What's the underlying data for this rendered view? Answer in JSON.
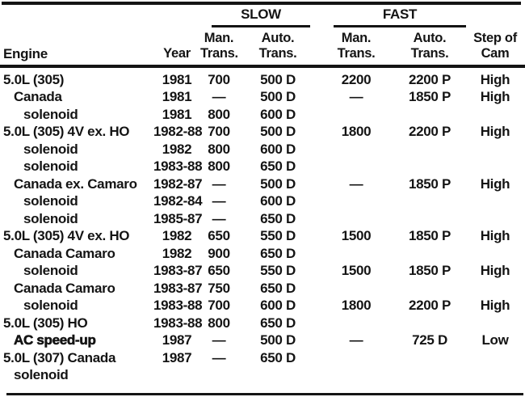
{
  "colors": {
    "text": "#141414",
    "background": "#ffffff",
    "rule": "#141414"
  },
  "table": {
    "groups": {
      "slow": "SLOW",
      "fast": "FAST"
    },
    "headers": {
      "engine": "Engine",
      "year": "Year",
      "man_line1": "Man.",
      "man_line2": "Trans.",
      "auto_line1": "Auto.",
      "auto_line2": "Trans.",
      "cam_line1": "Step of",
      "cam_line2": "Cam"
    },
    "rows": [
      {
        "engine": "5.0L (305)",
        "indent": 0,
        "heavy": false,
        "year": "1981",
        "slow_man": "700",
        "slow_auto": "500 D",
        "fast_man": "2200",
        "fast_auto": "2200 P",
        "cam": "High"
      },
      {
        "engine": "Canada",
        "indent": 1,
        "heavy": false,
        "year": "1981",
        "slow_man": "—",
        "slow_auto": "500 D",
        "fast_man": "—",
        "fast_auto": "1850 P",
        "cam": "High"
      },
      {
        "engine": "solenoid",
        "indent": 2,
        "heavy": false,
        "year": "1981",
        "slow_man": "800",
        "slow_auto": "600 D",
        "fast_man": "",
        "fast_auto": "",
        "cam": ""
      },
      {
        "engine": "5.0L (305) 4V ex. HO",
        "indent": 0,
        "heavy": false,
        "year": "1982-88",
        "slow_man": "700",
        "slow_auto": "500 D",
        "fast_man": "1800",
        "fast_auto": "2200 P",
        "cam": "High"
      },
      {
        "engine": "solenoid",
        "indent": 2,
        "heavy": false,
        "year": "1982",
        "slow_man": "800",
        "slow_auto": "600 D",
        "fast_man": "",
        "fast_auto": "",
        "cam": ""
      },
      {
        "engine": "solenoid",
        "indent": 2,
        "heavy": false,
        "year": "1983-88",
        "slow_man": "800",
        "slow_auto": "650 D",
        "fast_man": "",
        "fast_auto": "",
        "cam": ""
      },
      {
        "engine": "Canada ex. Camaro",
        "indent": 1,
        "heavy": false,
        "year": "1982-87",
        "slow_man": "—",
        "slow_auto": "500 D",
        "fast_man": "—",
        "fast_auto": "1850 P",
        "cam": "High"
      },
      {
        "engine": "solenoid",
        "indent": 2,
        "heavy": false,
        "year": "1982-84",
        "slow_man": "—",
        "slow_auto": "600 D",
        "fast_man": "",
        "fast_auto": "",
        "cam": ""
      },
      {
        "engine": "solenoid",
        "indent": 2,
        "heavy": false,
        "year": "1985-87",
        "slow_man": "—",
        "slow_auto": "650 D",
        "fast_man": "",
        "fast_auto": "",
        "cam": ""
      },
      {
        "engine": "5.0L (305) 4V ex. HO",
        "indent": 0,
        "heavy": false,
        "year": "1982",
        "slow_man": "650",
        "slow_auto": "550 D",
        "fast_man": "1500",
        "fast_auto": "1850 P",
        "cam": "High"
      },
      {
        "engine": "Canada Camaro",
        "indent": 1,
        "heavy": false,
        "year": "1982",
        "slow_man": "900",
        "slow_auto": "650 D",
        "fast_man": "",
        "fast_auto": "",
        "cam": ""
      },
      {
        "engine": "solenoid",
        "indent": 2,
        "heavy": false,
        "year": "1983-87",
        "slow_man": "650",
        "slow_auto": "550 D",
        "fast_man": "1500",
        "fast_auto": "1850 P",
        "cam": "High"
      },
      {
        "engine": "Canada Camaro",
        "indent": 1,
        "heavy": false,
        "year": "1983-87",
        "slow_man": "750",
        "slow_auto": "650 D",
        "fast_man": "",
        "fast_auto": "",
        "cam": ""
      },
      {
        "engine": "solenoid",
        "indent": 2,
        "heavy": false,
        "year": "1983-88",
        "slow_man": "700",
        "slow_auto": "600 D",
        "fast_man": "1800",
        "fast_auto": "2200 P",
        "cam": "High"
      },
      {
        "engine": "5.0L (305) HO",
        "indent": 0,
        "heavy": false,
        "year": "1983-88",
        "slow_man": "800",
        "slow_auto": "650 D",
        "fast_man": "",
        "fast_auto": "",
        "cam": ""
      },
      {
        "engine": "AC speed-up",
        "indent": 1,
        "heavy": true,
        "year": "1987",
        "slow_man": "—",
        "slow_auto": "500 D",
        "fast_man": "—",
        "fast_auto": "725 D",
        "cam": "Low"
      },
      {
        "engine": "5.0L (307) Canada",
        "indent": 0,
        "heavy": false,
        "year": "1987",
        "slow_man": "—",
        "slow_auto": "650 D",
        "fast_man": "",
        "fast_auto": "",
        "cam": ""
      },
      {
        "engine": "solenoid",
        "indent": 1,
        "heavy": false,
        "year": "",
        "slow_man": "",
        "slow_auto": "",
        "fast_man": "",
        "fast_auto": "",
        "cam": ""
      }
    ]
  }
}
